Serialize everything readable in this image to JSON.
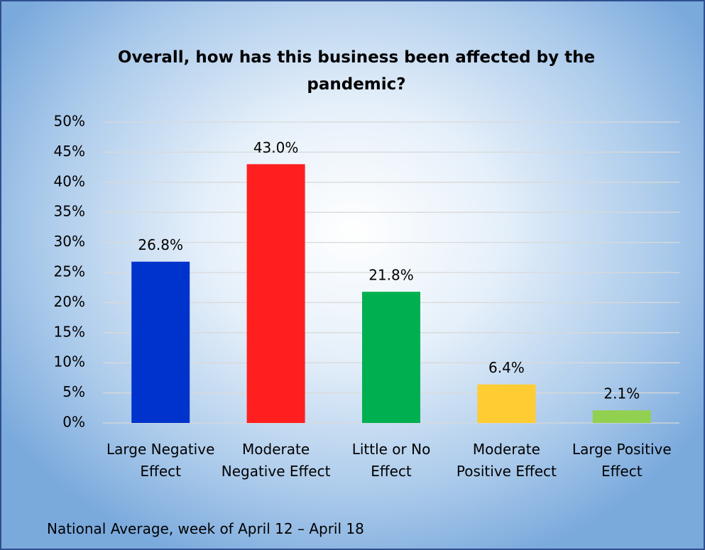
{
  "chart_data": {
    "type": "bar",
    "title": "Overall, how has this business been affected by the pandemic?",
    "categories": [
      "Large Negative Effect",
      "Moderate Negative Effect",
      "Little or No Effect",
      "Moderate Positive Effect",
      "Large Positive Effect"
    ],
    "values": [
      26.8,
      43.0,
      21.8,
      6.4,
      2.1
    ],
    "value_labels": [
      "26.8%",
      "43.0%",
      "21.8%",
      "6.4%",
      "2.1%"
    ],
    "colors": [
      "#0033cc",
      "#ff1f1f",
      "#00b050",
      "#ffcc33",
      "#92d050"
    ],
    "ylim": [
      0,
      50
    ],
    "yticks": [
      {
        "value": 0,
        "label": "0%"
      },
      {
        "value": 5,
        "label": "5%"
      },
      {
        "value": 10,
        "label": "10%"
      },
      {
        "value": 15,
        "label": "15%"
      },
      {
        "value": 20,
        "label": "20%"
      },
      {
        "value": 25,
        "label": "25%"
      },
      {
        "value": 30,
        "label": "30%"
      },
      {
        "value": 35,
        "label": "35%"
      },
      {
        "value": 40,
        "label": "40%"
      },
      {
        "value": 45,
        "label": "45%"
      },
      {
        "value": 50,
        "label": "50%"
      }
    ],
    "grid": true,
    "note": "National Average, week of April 12 – April 18"
  }
}
